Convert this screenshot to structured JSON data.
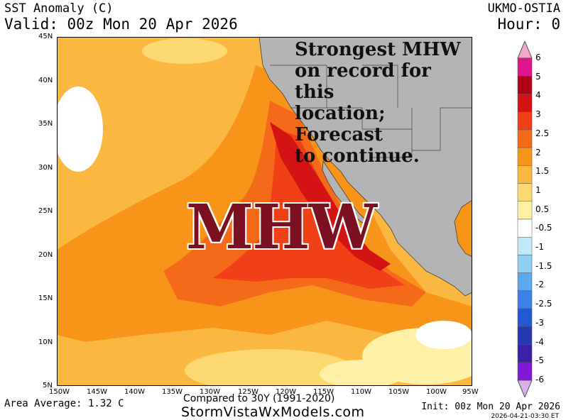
{
  "header": {
    "title": "SST Anomaly (C)",
    "valid": "Valid: 00z Mon 20 Apr 2026",
    "source": "UKMO-OSTIA",
    "hour": "Hour: 0"
  },
  "map": {
    "lat_labels": [
      "45N",
      "40N",
      "35N",
      "30N",
      "25N",
      "20N",
      "15N",
      "10N",
      "5N"
    ],
    "lon_labels": [
      "150W",
      "145W",
      "140W",
      "135W",
      "130W",
      "125W",
      "120W",
      "115W",
      "110W",
      "105W",
      "100W",
      "95W"
    ],
    "extent": {
      "lon": [
        -150,
        -95
      ],
      "lat": [
        5,
        45
      ]
    },
    "land_color": "#b4b4b4"
  },
  "annotation": {
    "line1": "Strongest MHW",
    "line2": "on record for this",
    "line3": "location; Forecast",
    "line4": "to continue.",
    "overlay": "MHW"
  },
  "colorbar": {
    "labels": [
      "6",
      "5",
      "4",
      "3",
      "2.5",
      "2",
      "1.5",
      "1",
      "0.5",
      "-0.5",
      "-1",
      "-1.5",
      "-2",
      "-2.5",
      "-3",
      "-4",
      "-5",
      "-6"
    ],
    "colors": [
      "#f2a8c8",
      "#e0148c",
      "#b00016",
      "#d41414",
      "#f04018",
      "#f46a18",
      "#f89418",
      "#fbb840",
      "#fcd870",
      "#fff0a8",
      "#ffffff",
      "#c0e8f8",
      "#90cef2",
      "#5ca8ee",
      "#3c80e8",
      "#2458d4",
      "#2438b0",
      "#3c20a8",
      "#8018d8",
      "#d8b0f0"
    ]
  },
  "footer": {
    "area_average": "Area Average: 1.32 C",
    "compared": "Compared to 30Y (1991-2020)",
    "brand": "StormVistaWxModels.com",
    "init": "Init: 00z Mon 20 Apr 2026",
    "timestamp": "2026-04-21-03:30 ET"
  }
}
